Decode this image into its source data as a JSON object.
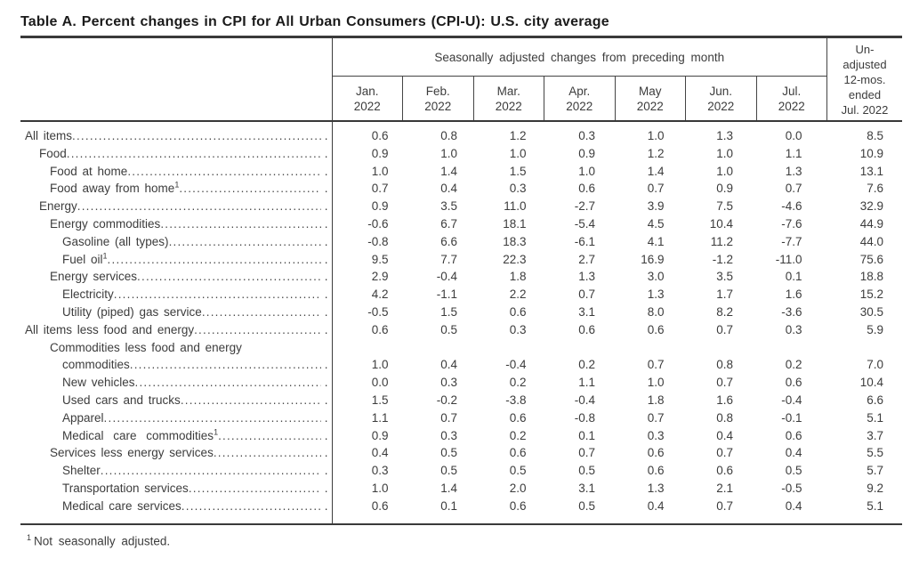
{
  "page": {
    "title": "Table A. Percent changes in CPI for All Urban Consumers (CPI-U): U.S. city average",
    "footnote_sup": "1",
    "footnote_text": "Not seasonally adjusted."
  },
  "colors": {
    "ink": "#3c3c3c",
    "rule": "#3a3a3a",
    "background": "#ffffff"
  },
  "table": {
    "group_header": "Seasonally adjusted changes from preceding month",
    "unadjusted_header_lines": [
      "Un-",
      "adjusted",
      "12-mos.",
      "ended",
      "Jul. 2022"
    ],
    "column_headers": [
      {
        "month": "Jan.",
        "year": "2022"
      },
      {
        "month": "Feb.",
        "year": "2022"
      },
      {
        "month": "Mar.",
        "year": "2022"
      },
      {
        "month": "Apr.",
        "year": "2022"
      },
      {
        "month": "May",
        "year": "2022"
      },
      {
        "month": "Jun.",
        "year": "2022"
      },
      {
        "month": "Jul.",
        "year": "2022"
      }
    ],
    "rows": [
      {
        "label": "All items",
        "indent": 0,
        "values": [
          "0.6",
          "0.8",
          "1.2",
          "0.3",
          "1.0",
          "1.3",
          "0.0",
          "8.5"
        ]
      },
      {
        "label": "Food",
        "indent": 1,
        "values": [
          "0.9",
          "1.0",
          "1.0",
          "0.9",
          "1.2",
          "1.0",
          "1.1",
          "10.9"
        ]
      },
      {
        "label": "Food at home",
        "indent": 2,
        "values": [
          "1.0",
          "1.4",
          "1.5",
          "1.0",
          "1.4",
          "1.0",
          "1.3",
          "13.1"
        ]
      },
      {
        "label": "Food away from home",
        "sup": "1",
        "indent": 2,
        "values": [
          "0.7",
          "0.4",
          "0.3",
          "0.6",
          "0.7",
          "0.9",
          "0.7",
          "7.6"
        ]
      },
      {
        "label": "Energy",
        "indent": 1,
        "values": [
          "0.9",
          "3.5",
          "11.0",
          "-2.7",
          "3.9",
          "7.5",
          "-4.6",
          "32.9"
        ]
      },
      {
        "label": "Energy commodities",
        "indent": 2,
        "values": [
          "-0.6",
          "6.7",
          "18.1",
          "-5.4",
          "4.5",
          "10.4",
          "-7.6",
          "44.9"
        ]
      },
      {
        "label": "Gasoline (all types)",
        "indent": 3,
        "values": [
          "-0.8",
          "6.6",
          "18.3",
          "-6.1",
          "4.1",
          "11.2",
          "-7.7",
          "44.0"
        ]
      },
      {
        "label": "Fuel oil",
        "sup": "1",
        "indent": 3,
        "values": [
          "9.5",
          "7.7",
          "22.3",
          "2.7",
          "16.9",
          "-1.2",
          "-11.0",
          "75.6"
        ]
      },
      {
        "label": "Energy services",
        "indent": 2,
        "values": [
          "2.9",
          "-0.4",
          "1.8",
          "1.3",
          "3.0",
          "3.5",
          "0.1",
          "18.8"
        ]
      },
      {
        "label": "Electricity",
        "indent": 3,
        "values": [
          "4.2",
          "-1.1",
          "2.2",
          "0.7",
          "1.3",
          "1.7",
          "1.6",
          "15.2"
        ]
      },
      {
        "label": "Utility (piped) gas service",
        "indent": 3,
        "values": [
          "-0.5",
          "1.5",
          "0.6",
          "3.1",
          "8.0",
          "8.2",
          "-3.6",
          "30.5"
        ]
      },
      {
        "label": "All items less food and energy",
        "indent": 0,
        "values": [
          "0.6",
          "0.5",
          "0.3",
          "0.6",
          "0.6",
          "0.7",
          "0.3",
          "5.9"
        ]
      },
      {
        "label_line1": "Commodities less food and energy",
        "label_line2": "commodities",
        "indent": 2,
        "values": [
          "1.0",
          "0.4",
          "-0.4",
          "0.2",
          "0.7",
          "0.8",
          "0.2",
          "7.0"
        ]
      },
      {
        "label": "New vehicles",
        "indent": 3,
        "values": [
          "0.0",
          "0.3",
          "0.2",
          "1.1",
          "1.0",
          "0.7",
          "0.6",
          "10.4"
        ]
      },
      {
        "label": "Used cars and trucks",
        "indent": 3,
        "values": [
          "1.5",
          "-0.2",
          "-3.8",
          "-0.4",
          "1.8",
          "1.6",
          "-0.4",
          "6.6"
        ]
      },
      {
        "label": "Apparel",
        "indent": 3,
        "values": [
          "1.1",
          "0.7",
          "0.6",
          "-0.8",
          "0.7",
          "0.8",
          "-0.1",
          "5.1"
        ]
      },
      {
        "label": "Medical care commodities",
        "sup": "1",
        "wide": true,
        "indent": 3,
        "values": [
          "0.9",
          "0.3",
          "0.2",
          "0.1",
          "0.3",
          "0.4",
          "0.6",
          "3.7"
        ]
      },
      {
        "label": "Services less energy services",
        "indent": 2,
        "values": [
          "0.4",
          "0.5",
          "0.6",
          "0.7",
          "0.6",
          "0.7",
          "0.4",
          "5.5"
        ]
      },
      {
        "label": "Shelter",
        "indent": 3,
        "values": [
          "0.3",
          "0.5",
          "0.5",
          "0.5",
          "0.6",
          "0.6",
          "0.5",
          "5.7"
        ]
      },
      {
        "label": "Transportation services",
        "indent": 3,
        "values": [
          "1.0",
          "1.4",
          "2.0",
          "3.1",
          "1.3",
          "2.1",
          "-0.5",
          "9.2"
        ]
      },
      {
        "label": "Medical care services",
        "indent": 3,
        "values": [
          "0.6",
          "0.1",
          "0.6",
          "0.5",
          "0.4",
          "0.7",
          "0.4",
          "5.1"
        ]
      }
    ]
  }
}
